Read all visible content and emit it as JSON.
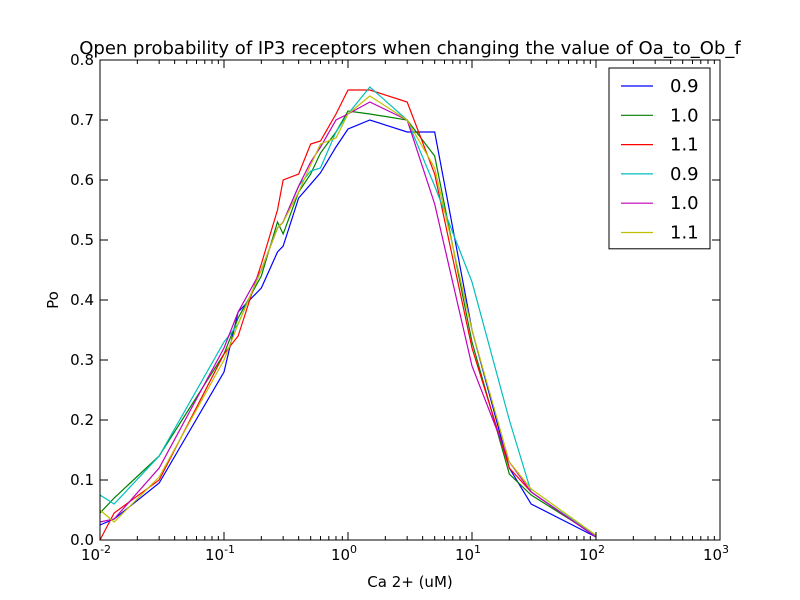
{
  "chart_data": {
    "type": "line",
    "title": "Open probability of IP3 receptors when changing the value of Oa_to_Ob_f",
    "xlabel": "Ca 2+ (uM)",
    "ylabel": "Po",
    "xscale": "log",
    "xlim": [
      0.01,
      1000
    ],
    "ylim": [
      0.0,
      0.8
    ],
    "xticks": [
      {
        "base": "10",
        "exp": "-2"
      },
      {
        "base": "10",
        "exp": "-1"
      },
      {
        "base": "10",
        "exp": "0"
      },
      {
        "base": "10",
        "exp": "1"
      },
      {
        "base": "10",
        "exp": "2"
      },
      {
        "base": "10",
        "exp": "3"
      }
    ],
    "yticks": [
      "0.0",
      "0.1",
      "0.2",
      "0.3",
      "0.4",
      "0.5",
      "0.6",
      "0.7",
      "0.8"
    ],
    "grid": false,
    "legend_position": "top-right",
    "series": [
      {
        "name": "0.9",
        "color": "#0000ff",
        "x": [
          0.01,
          0.013,
          0.03,
          0.1,
          0.13,
          0.2,
          0.27,
          0.3,
          0.4,
          0.5,
          0.6,
          0.8,
          1.0,
          1.5,
          3.0,
          5.0,
          10,
          20,
          30,
          100
        ],
        "y": [
          0.025,
          0.035,
          0.095,
          0.28,
          0.38,
          0.42,
          0.48,
          0.49,
          0.57,
          0.593,
          0.612,
          0.655,
          0.685,
          0.7,
          0.68,
          0.68,
          0.35,
          0.12,
          0.06,
          0.005
        ]
      },
      {
        "name": "1.0",
        "color": "#008000",
        "x": [
          0.01,
          0.013,
          0.03,
          0.1,
          0.13,
          0.2,
          0.27,
          0.3,
          0.4,
          0.5,
          0.6,
          0.8,
          1.0,
          1.5,
          3.0,
          5.0,
          10,
          20,
          30,
          100
        ],
        "y": [
          0.045,
          0.07,
          0.14,
          0.31,
          0.37,
          0.44,
          0.53,
          0.51,
          0.58,
          0.61,
          0.645,
          0.68,
          0.715,
          0.71,
          0.7,
          0.64,
          0.33,
          0.11,
          0.075,
          0.007
        ]
      },
      {
        "name": "1.1",
        "color": "#ff0000",
        "x": [
          0.01,
          0.013,
          0.03,
          0.1,
          0.13,
          0.2,
          0.27,
          0.3,
          0.4,
          0.5,
          0.6,
          0.8,
          1.0,
          1.5,
          3.0,
          5.0,
          10,
          20,
          30,
          100
        ],
        "y": [
          0.0,
          0.045,
          0.1,
          0.31,
          0.34,
          0.46,
          0.55,
          0.6,
          0.61,
          0.66,
          0.665,
          0.71,
          0.75,
          0.75,
          0.73,
          0.61,
          0.32,
          0.12,
          0.08,
          0.005
        ]
      },
      {
        "name": "0.9",
        "color": "#00bfbf",
        "x": [
          0.01,
          0.013,
          0.03,
          0.1,
          0.13,
          0.2,
          0.27,
          0.3,
          0.4,
          0.5,
          0.6,
          0.8,
          1.0,
          1.5,
          3.0,
          5.0,
          10,
          20,
          30,
          100
        ],
        "y": [
          0.075,
          0.06,
          0.14,
          0.33,
          0.36,
          0.45,
          0.52,
          0.53,
          0.59,
          0.615,
          0.62,
          0.68,
          0.71,
          0.755,
          0.7,
          0.59,
          0.43,
          0.2,
          0.08,
          0.007
        ]
      },
      {
        "name": "1.0",
        "color": "#bf00bf",
        "x": [
          0.01,
          0.013,
          0.03,
          0.1,
          0.13,
          0.2,
          0.27,
          0.3,
          0.4,
          0.5,
          0.6,
          0.8,
          1.0,
          1.5,
          3.0,
          5.0,
          10,
          20,
          30,
          100
        ],
        "y": [
          0.03,
          0.035,
          0.12,
          0.32,
          0.38,
          0.45,
          0.52,
          0.53,
          0.59,
          0.63,
          0.655,
          0.7,
          0.71,
          0.73,
          0.7,
          0.56,
          0.29,
          0.13,
          0.08,
          0.005
        ]
      },
      {
        "name": "1.1",
        "color": "#bfbf00",
        "x": [
          0.01,
          0.013,
          0.03,
          0.1,
          0.13,
          0.2,
          0.27,
          0.3,
          0.4,
          0.5,
          0.6,
          0.8,
          1.0,
          1.5,
          3.0,
          5.0,
          10,
          20,
          30,
          100
        ],
        "y": [
          0.05,
          0.03,
          0.105,
          0.3,
          0.36,
          0.45,
          0.52,
          0.53,
          0.58,
          0.625,
          0.66,
          0.67,
          0.71,
          0.74,
          0.7,
          0.62,
          0.35,
          0.13,
          0.085,
          0.008
        ]
      }
    ]
  }
}
